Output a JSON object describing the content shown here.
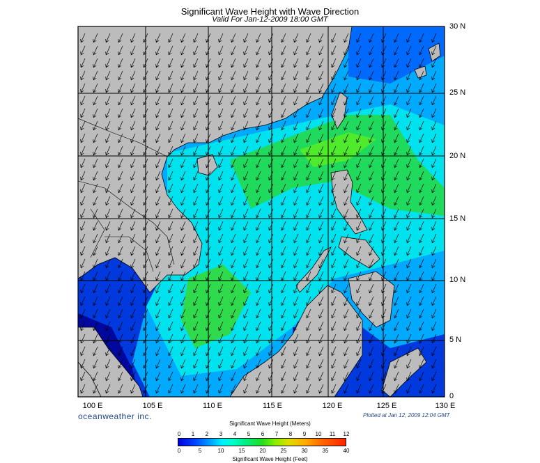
{
  "title": "Significant Wave Height with Wave Direction",
  "subtitle": "Valid For Jan-12-2009 18:00 GMT",
  "lon_labels": [
    "100 E",
    "105 E",
    "110 E",
    "115 E",
    "120 E",
    "125 E",
    "130 E"
  ],
  "lat_labels": [
    "30 N",
    "25 N",
    "20 N",
    "15 N",
    "10 N",
    "5 N",
    "0"
  ],
  "brand": "oceanweather inc.",
  "plotted": "Plotted at Jan 12, 2009 12:04 GMT",
  "colorbar": {
    "title_meters": "Significant Wave Height (Meters)",
    "title_feet": "Significant Wave Height (Feet)",
    "meters_ticks": [
      "0",
      "1",
      "2",
      "3",
      "4",
      "5",
      "6",
      "7",
      "8",
      "9",
      "10",
      "11",
      "12"
    ],
    "feet_ticks": [
      "0",
      "5",
      "10",
      "15",
      "20",
      "25",
      "30",
      "35",
      "40"
    ]
  },
  "colors": {
    "land": "#bcbcbc",
    "deep_low": "#0000cc",
    "low": "#0055ff",
    "mid": "#00bbff",
    "cyan": "#00eeee",
    "high": "#22dd33"
  },
  "wave_direction": "southwest",
  "extent": {
    "lon": [
      100,
      130
    ],
    "lat": [
      0,
      30
    ]
  }
}
